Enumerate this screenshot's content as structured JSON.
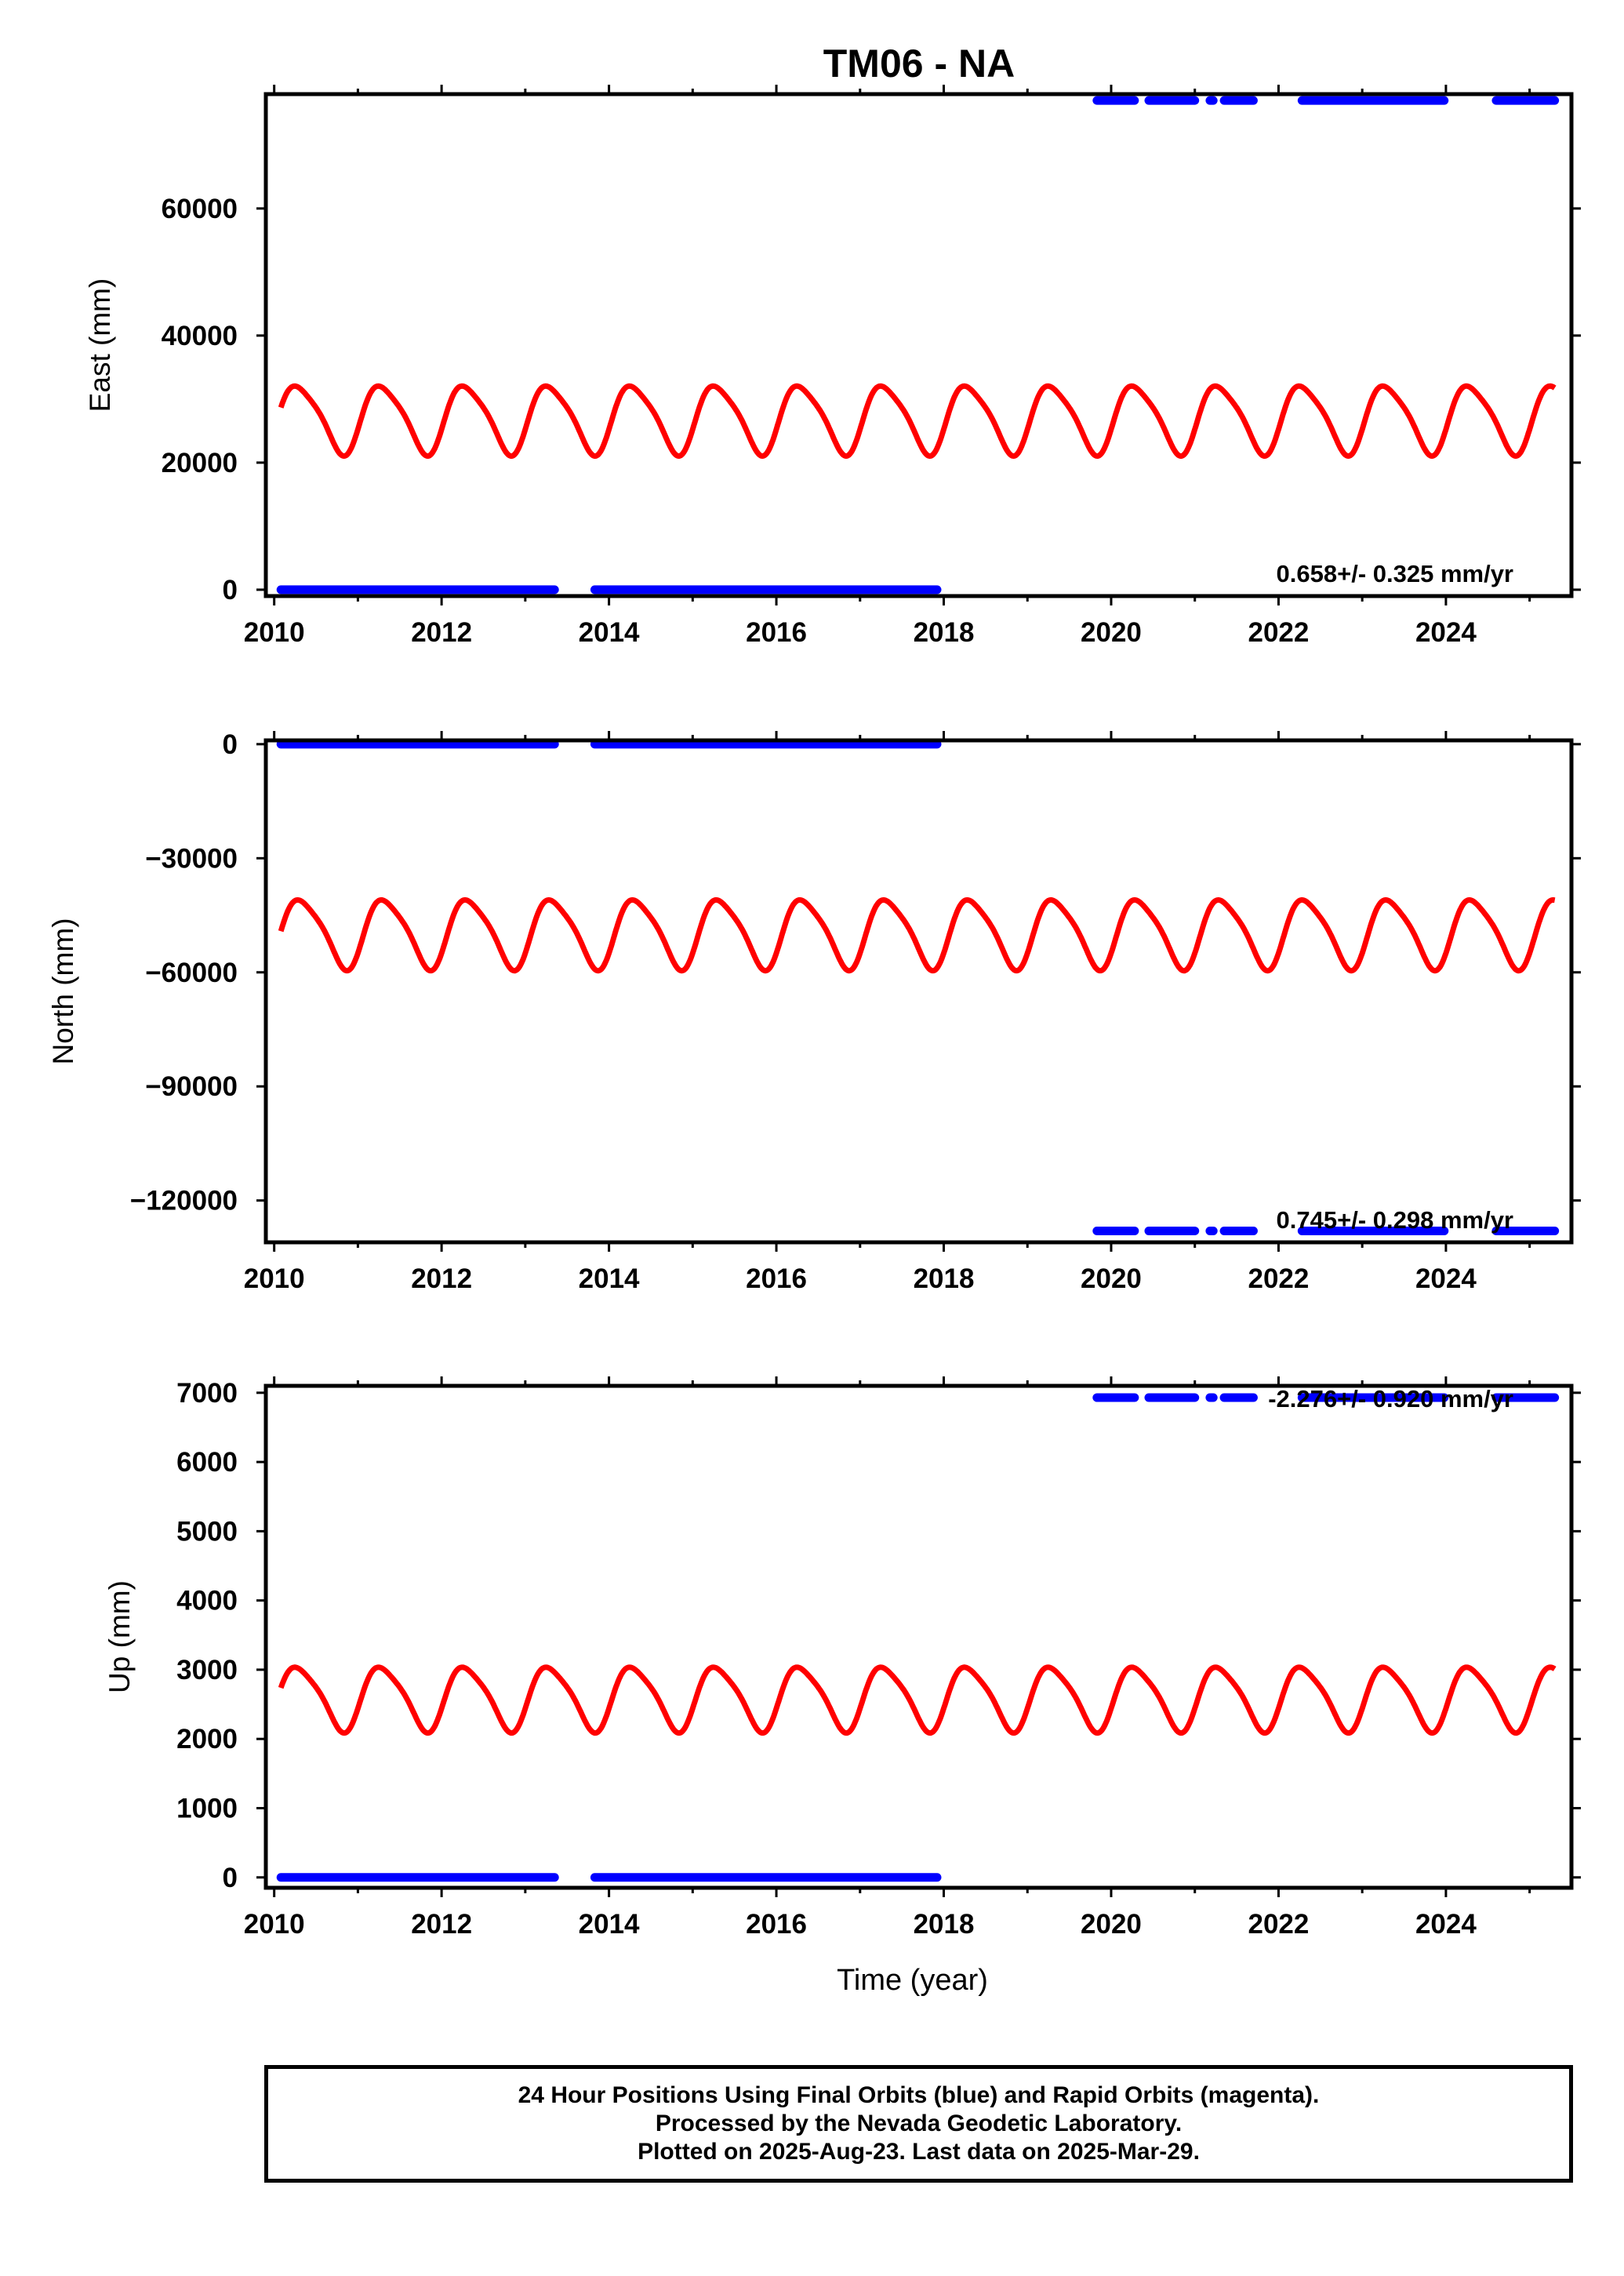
{
  "title": "TM06 - NA",
  "footer": {
    "line1": "24 Hour Positions Using Final Orbits (blue) and Rapid Orbits (magenta).",
    "line2": "Processed by the Nevada Geodetic Laboratory.",
    "line3": "Plotted on 2025-Aug-23. Last data on 2025-Mar-29."
  },
  "colors": {
    "final_orbits": "#0000ff",
    "model": "#ff0000",
    "frame": "#000000"
  },
  "chart_data": [
    {
      "type": "scatter",
      "ylabel": "East (mm)",
      "xlim": [
        2009.9,
        2025.5
      ],
      "ylim": [
        -1000,
        78000
      ],
      "xticks": [
        2010,
        2012,
        2014,
        2016,
        2018,
        2020,
        2022,
        2024
      ],
      "yticks": [
        0,
        20000,
        40000,
        60000
      ],
      "annotation": "0.658+/- 0.325 mm/yr",
      "points": [
        {
          "x_start": 2010.08,
          "x_end": 2013.35,
          "y": 0
        },
        {
          "x_start": 2013.83,
          "x_end": 2017.92,
          "y": 0
        },
        {
          "x_start": 2019.83,
          "x_end": 2020.28,
          "y": 77000
        },
        {
          "x_start": 2020.45,
          "x_end": 2021.0,
          "y": 77000
        },
        {
          "x_start": 2021.18,
          "x_end": 2021.22,
          "y": 77000
        },
        {
          "x_start": 2021.35,
          "x_end": 2021.7,
          "y": 77000
        },
        {
          "x_start": 2022.28,
          "x_end": 2023.98,
          "y": 77000
        },
        {
          "x_start": 2024.6,
          "x_end": 2025.3,
          "y": 77000
        }
      ],
      "model": {
        "x_start": 2010.08,
        "x_end": 2025.3,
        "mean": 27000,
        "amplitude": 5800,
        "period_years": 1.0,
        "start_value": 28000
      }
    },
    {
      "type": "scatter",
      "ylabel": "North (mm)",
      "xlim": [
        2009.9,
        2025.5
      ],
      "ylim": [
        -131000,
        1000
      ],
      "xticks": [
        2010,
        2012,
        2014,
        2016,
        2018,
        2020,
        2022,
        2024
      ],
      "yticks": [
        0,
        -30000,
        -60000,
        -90000,
        -120000
      ],
      "ytick_labels": [
        "0",
        "−30000",
        "−60000",
        "−90000",
        "−120000"
      ],
      "annotation": "0.745+/- 0.298 mm/yr",
      "points": [
        {
          "x_start": 2010.08,
          "x_end": 2013.35,
          "y": 0
        },
        {
          "x_start": 2013.83,
          "x_end": 2017.92,
          "y": 0
        },
        {
          "x_start": 2019.83,
          "x_end": 2020.28,
          "y": -128000
        },
        {
          "x_start": 2020.45,
          "x_end": 2021.0,
          "y": -128000
        },
        {
          "x_start": 2021.18,
          "x_end": 2021.22,
          "y": -128000
        },
        {
          "x_start": 2021.35,
          "x_end": 2021.7,
          "y": -128000
        },
        {
          "x_start": 2022.28,
          "x_end": 2023.98,
          "y": -128000
        },
        {
          "x_start": 2024.6,
          "x_end": 2025.3,
          "y": -128000
        }
      ],
      "model": {
        "x_start": 2010.08,
        "x_end": 2025.3,
        "mean": -49500,
        "amplitude": 9800,
        "period_years": 1.0,
        "start_value": -50000
      }
    },
    {
      "type": "scatter",
      "ylabel": "Up (mm)",
      "xlabel": "Time (year)",
      "xlim": [
        2009.9,
        2025.5
      ],
      "ylim": [
        -150,
        7100
      ],
      "xticks": [
        2010,
        2012,
        2014,
        2016,
        2018,
        2020,
        2022,
        2024
      ],
      "yticks": [
        0,
        1000,
        2000,
        3000,
        4000,
        5000,
        6000,
        7000
      ],
      "annotation": "-2.276+/- 0.920 mm/yr",
      "points": [
        {
          "x_start": 2010.08,
          "x_end": 2013.35,
          "y": 0
        },
        {
          "x_start": 2013.83,
          "x_end": 2017.92,
          "y": 0
        },
        {
          "x_start": 2019.83,
          "x_end": 2020.28,
          "y": 6930
        },
        {
          "x_start": 2020.45,
          "x_end": 2021.0,
          "y": 6930
        },
        {
          "x_start": 2021.18,
          "x_end": 2021.22,
          "y": 6930
        },
        {
          "x_start": 2021.35,
          "x_end": 2021.7,
          "y": 6930
        },
        {
          "x_start": 2022.28,
          "x_end": 2023.98,
          "y": 6930
        },
        {
          "x_start": 2024.6,
          "x_end": 2025.3,
          "y": 6930
        }
      ],
      "model": {
        "x_start": 2010.08,
        "x_end": 2025.3,
        "mean": 2600,
        "amplitude": 500,
        "period_years": 1.0,
        "start_value": 2680
      }
    }
  ]
}
